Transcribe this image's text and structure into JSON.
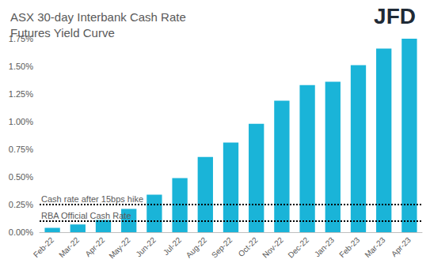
{
  "chart_data": {
    "type": "bar",
    "title": "ASX 30-day Interbank Cash Rate Futures Yield Curve",
    "logo": "JFD",
    "categories": [
      "Feb-22",
      "Mar-22",
      "Apr-22",
      "May-22",
      "Jun-22",
      "Jul-22",
      "Aug-22",
      "Sep-22",
      "Oct-22",
      "Nov-22",
      "Dec-22",
      "Jan-23",
      "Feb-23",
      "Mar-23",
      "Apr-23"
    ],
    "values": [
      0.04,
      0.07,
      0.11,
      0.21,
      0.34,
      0.49,
      0.68,
      0.81,
      0.98,
      1.19,
      1.33,
      1.36,
      1.51,
      1.66,
      1.75
    ],
    "color": "#1ab4d8",
    "ylim": [
      0,
      1.75
    ],
    "yticks": [
      {
        "value": 0,
        "label": "0.00%"
      },
      {
        "value": 0.25,
        "label": "0.25%"
      },
      {
        "value": 0.5,
        "label": "0.50%"
      },
      {
        "value": 0.75,
        "label": "0.75%"
      },
      {
        "value": 1.0,
        "label": "1.00%"
      },
      {
        "value": 1.25,
        "label": "1.25%"
      },
      {
        "value": 1.5,
        "label": "1.50%"
      },
      {
        "value": 1.75,
        "label": "1.75%"
      }
    ],
    "reference_lines": [
      {
        "label": "Cash rate after 15bps hike",
        "value": 0.25,
        "line_style": "dotted"
      },
      {
        "label": "RBA Official Cash Rate",
        "value": 0.1,
        "line_style": "dotted"
      }
    ],
    "grid": false
  }
}
